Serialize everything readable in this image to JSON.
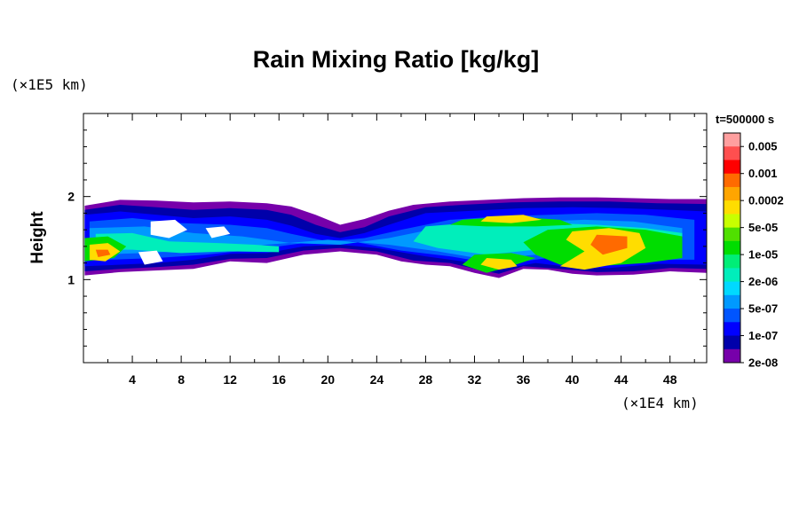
{
  "chart_data": {
    "type": "heatmap",
    "title": "Rain Mixing Ratio [kg/kg]",
    "ylabel": "Height",
    "x_unit": "(×1E4 km)",
    "y_unit": "(×1E5 km)",
    "time_label": "t=500000 s",
    "xlim": [
      0,
      51
    ],
    "ylim": [
      0,
      3
    ],
    "x_ticks": [
      4,
      8,
      12,
      16,
      20,
      24,
      28,
      32,
      36,
      40,
      44,
      48
    ],
    "y_ticks": [
      1,
      2
    ],
    "colorbar": {
      "labels": [
        "0.005",
        "0.001",
        "0.0002",
        "5e-05",
        "1e-05",
        "2e-06",
        "5e-07",
        "1e-07",
        "2e-08"
      ],
      "colors": [
        "#ff9f9f",
        "#ff4f4f",
        "#ff0000",
        "#ff6a00",
        "#ffa500",
        "#ffdd00",
        "#c8ff00",
        "#50e000",
        "#00dd00",
        "#00ee77",
        "#00eebb",
        "#00d9ff",
        "#0099ff",
        "#0055ff",
        "#0000ff",
        "#0000aa",
        "#7700aa"
      ]
    },
    "layers": [
      {
        "level": 0,
        "points": [
          [
            0.1,
            1.89
          ],
          [
            3,
            1.96
          ],
          [
            6,
            1.95
          ],
          [
            9,
            1.93
          ],
          [
            12,
            1.94
          ],
          [
            15,
            1.92
          ],
          [
            17,
            1.88
          ],
          [
            19,
            1.78
          ],
          [
            21,
            1.66
          ],
          [
            23,
            1.73
          ],
          [
            25,
            1.83
          ],
          [
            27,
            1.9
          ],
          [
            30,
            1.94
          ],
          [
            33,
            1.96
          ],
          [
            36,
            1.98
          ],
          [
            39,
            1.99
          ],
          [
            42,
            1.99
          ],
          [
            45,
            1.98
          ],
          [
            48,
            1.97
          ],
          [
            51,
            1.97
          ],
          [
            51,
            1.08
          ],
          [
            48,
            1.1
          ],
          [
            45,
            1.06
          ],
          [
            42,
            1.05
          ],
          [
            40,
            1.07
          ],
          [
            38,
            1.12
          ],
          [
            36,
            1.13
          ],
          [
            34,
            1.02
          ],
          [
            32,
            1.08
          ],
          [
            30,
            1.16
          ],
          [
            28,
            1.18
          ],
          [
            26,
            1.22
          ],
          [
            24,
            1.3
          ],
          [
            21,
            1.34
          ],
          [
            18,
            1.3
          ],
          [
            15,
            1.2
          ],
          [
            12,
            1.22
          ],
          [
            9,
            1.13
          ],
          [
            6,
            1.11
          ],
          [
            3,
            1.09
          ],
          [
            0.1,
            1.05
          ]
        ]
      },
      {
        "level": 1,
        "points": [
          [
            0.1,
            1.84
          ],
          [
            3,
            1.9
          ],
          [
            6,
            1.87
          ],
          [
            9,
            1.84
          ],
          [
            12,
            1.86
          ],
          [
            15,
            1.84
          ],
          [
            17,
            1.78
          ],
          [
            19,
            1.66
          ],
          [
            21,
            1.57
          ],
          [
            23,
            1.63
          ],
          [
            25,
            1.76
          ],
          [
            28,
            1.87
          ],
          [
            31,
            1.9
          ],
          [
            35,
            1.93
          ],
          [
            39,
            1.94
          ],
          [
            43,
            1.94
          ],
          [
            47,
            1.92
          ],
          [
            51,
            1.91
          ],
          [
            51,
            1.13
          ],
          [
            48,
            1.14
          ],
          [
            45,
            1.1
          ],
          [
            42,
            1.09
          ],
          [
            39,
            1.13
          ],
          [
            36,
            1.16
          ],
          [
            34,
            1.07
          ],
          [
            32,
            1.13
          ],
          [
            30,
            1.2
          ],
          [
            27,
            1.23
          ],
          [
            24,
            1.34
          ],
          [
            21,
            1.38
          ],
          [
            18,
            1.35
          ],
          [
            15,
            1.26
          ],
          [
            12,
            1.25
          ],
          [
            9,
            1.18
          ],
          [
            6,
            1.15
          ],
          [
            3,
            1.13
          ],
          [
            0.1,
            1.1
          ]
        ]
      },
      {
        "level": 2,
        "points": [
          [
            0.1,
            1.78
          ],
          [
            3,
            1.82
          ],
          [
            6,
            1.78
          ],
          [
            9,
            1.74
          ],
          [
            12,
            1.76
          ],
          [
            15,
            1.72
          ],
          [
            17,
            1.65
          ],
          [
            19,
            1.55
          ],
          [
            21,
            1.5
          ],
          [
            23,
            1.56
          ],
          [
            25,
            1.66
          ],
          [
            28,
            1.8
          ],
          [
            32,
            1.83
          ],
          [
            36,
            1.86
          ],
          [
            40,
            1.87
          ],
          [
            44,
            1.86
          ],
          [
            48,
            1.84
          ],
          [
            51,
            1.82
          ],
          [
            51,
            1.18
          ],
          [
            47,
            1.19
          ],
          [
            43,
            1.14
          ],
          [
            40,
            1.15
          ],
          [
            37,
            1.2
          ],
          [
            34,
            1.12
          ],
          [
            31,
            1.22
          ],
          [
            28,
            1.28
          ],
          [
            24,
            1.38
          ],
          [
            21,
            1.42
          ],
          [
            18,
            1.4
          ],
          [
            15,
            1.32
          ],
          [
            12,
            1.31
          ],
          [
            9,
            1.24
          ],
          [
            6,
            1.2
          ],
          [
            3,
            1.18
          ],
          [
            0.1,
            1.16
          ]
        ]
      },
      {
        "level": 3,
        "points": [
          [
            0.5,
            1.7
          ],
          [
            4,
            1.74
          ],
          [
            8,
            1.68
          ],
          [
            12,
            1.66
          ],
          [
            15,
            1.62
          ],
          [
            17,
            1.55
          ],
          [
            20,
            1.46
          ],
          [
            23,
            1.5
          ],
          [
            26,
            1.6
          ],
          [
            30,
            1.72
          ],
          [
            34,
            1.76
          ],
          [
            38,
            1.78
          ],
          [
            42,
            1.8
          ],
          [
            46,
            1.78
          ],
          [
            50,
            1.72
          ],
          [
            50,
            1.24
          ],
          [
            46,
            1.24
          ],
          [
            42,
            1.2
          ],
          [
            38,
            1.26
          ],
          [
            34,
            1.18
          ],
          [
            30,
            1.28
          ],
          [
            26,
            1.35
          ],
          [
            22,
            1.46
          ],
          [
            18,
            1.44
          ],
          [
            14,
            1.36
          ],
          [
            10,
            1.3
          ],
          [
            6,
            1.26
          ],
          [
            2,
            1.24
          ],
          [
            0.5,
            1.24
          ]
        ]
      },
      {
        "level": 4,
        "points": [
          [
            0.5,
            1.62
          ],
          [
            5,
            1.64
          ],
          [
            9,
            1.56
          ],
          [
            13,
            1.52
          ],
          [
            17,
            1.44
          ],
          [
            21,
            1.42
          ],
          [
            25,
            1.5
          ],
          [
            29,
            1.62
          ],
          [
            33,
            1.68
          ],
          [
            37,
            1.7
          ],
          [
            41,
            1.72
          ],
          [
            45,
            1.7
          ],
          [
            49,
            1.62
          ],
          [
            49,
            1.3
          ],
          [
            45,
            1.3
          ],
          [
            41,
            1.24
          ],
          [
            37,
            1.3
          ],
          [
            33,
            1.24
          ],
          [
            29,
            1.34
          ],
          [
            25,
            1.42
          ],
          [
            20,
            1.48
          ],
          [
            15,
            1.42
          ],
          [
            10,
            1.36
          ],
          [
            5,
            1.32
          ],
          [
            0.5,
            1.3
          ]
        ]
      },
      {
        "level": 6,
        "points": [
          [
            1,
            1.55
          ],
          [
            4,
            1.56
          ],
          [
            7,
            1.46
          ],
          [
            11,
            1.44
          ],
          [
            14,
            1.42
          ],
          [
            16,
            1.4
          ],
          [
            16,
            1.33
          ],
          [
            12,
            1.34
          ],
          [
            8,
            1.32
          ],
          [
            4,
            1.36
          ],
          [
            1,
            1.36
          ]
        ]
      },
      {
        "level": 6,
        "points": [
          [
            28,
            1.64
          ],
          [
            33,
            1.7
          ],
          [
            38,
            1.68
          ],
          [
            42,
            1.66
          ],
          [
            46,
            1.62
          ],
          [
            49,
            1.56
          ],
          [
            49,
            1.36
          ],
          [
            45,
            1.36
          ],
          [
            41,
            1.3
          ],
          [
            37,
            1.36
          ],
          [
            33,
            1.3
          ],
          [
            29,
            1.38
          ],
          [
            27,
            1.46
          ]
        ]
      },
      {
        "level": 8,
        "points": [
          [
            31,
            1.72
          ],
          [
            35,
            1.76
          ],
          [
            39,
            1.72
          ],
          [
            40,
            1.66
          ],
          [
            37,
            1.64
          ],
          [
            33,
            1.64
          ],
          [
            30,
            1.66
          ]
        ]
      },
      {
        "level": 8,
        "points": [
          [
            38,
            1.6
          ],
          [
            42,
            1.64
          ],
          [
            46,
            1.6
          ],
          [
            49,
            1.52
          ],
          [
            49,
            1.26
          ],
          [
            46,
            1.2
          ],
          [
            42,
            1.16
          ],
          [
            39,
            1.18
          ],
          [
            37,
            1.3
          ],
          [
            36,
            1.45
          ]
        ]
      },
      {
        "level": 8,
        "points": [
          [
            32,
            1.3
          ],
          [
            35,
            1.32
          ],
          [
            37,
            1.26
          ],
          [
            35,
            1.16
          ],
          [
            33,
            1.08
          ],
          [
            31,
            1.18
          ]
        ]
      },
      {
        "level": 8,
        "points": [
          [
            0.1,
            1.5
          ],
          [
            2,
            1.52
          ],
          [
            3.5,
            1.4
          ],
          [
            2.5,
            1.26
          ],
          [
            0.1,
            1.22
          ]
        ]
      },
      {
        "level": 11,
        "points": [
          [
            33,
            1.76
          ],
          [
            36,
            1.78
          ],
          [
            37.5,
            1.72
          ],
          [
            35,
            1.68
          ],
          [
            32.5,
            1.7
          ]
        ]
      },
      {
        "level": 11,
        "points": [
          [
            40,
            1.58
          ],
          [
            43,
            1.62
          ],
          [
            45.5,
            1.56
          ],
          [
            46,
            1.38
          ],
          [
            44,
            1.2
          ],
          [
            41,
            1.12
          ],
          [
            39,
            1.16
          ],
          [
            41,
            1.34
          ],
          [
            39.5,
            1.48
          ]
        ]
      },
      {
        "level": 11,
        "points": [
          [
            33,
            1.26
          ],
          [
            35,
            1.24
          ],
          [
            35.5,
            1.16
          ],
          [
            34,
            1.12
          ],
          [
            32.5,
            1.18
          ]
        ]
      },
      {
        "level": 11,
        "points": [
          [
            0.5,
            1.42
          ],
          [
            2,
            1.44
          ],
          [
            3,
            1.34
          ],
          [
            1.8,
            1.22
          ],
          [
            0.5,
            1.24
          ]
        ]
      },
      {
        "level": 13,
        "points": [
          [
            42,
            1.54
          ],
          [
            44.5,
            1.52
          ],
          [
            44.5,
            1.38
          ],
          [
            42.5,
            1.3
          ],
          [
            41.5,
            1.42
          ]
        ]
      },
      {
        "level": 13,
        "points": [
          [
            1,
            1.36
          ],
          [
            2,
            1.36
          ],
          [
            2.2,
            1.3
          ],
          [
            1.2,
            1.27
          ]
        ]
      }
    ],
    "voids": [
      {
        "points": [
          [
            5.5,
            1.7
          ],
          [
            7.5,
            1.72
          ],
          [
            8.5,
            1.6
          ],
          [
            7,
            1.5
          ],
          [
            5.5,
            1.54
          ]
        ]
      },
      {
        "points": [
          [
            10,
            1.62
          ],
          [
            11.5,
            1.64
          ],
          [
            12,
            1.55
          ],
          [
            10.5,
            1.5
          ]
        ]
      },
      {
        "points": [
          [
            4.5,
            1.33
          ],
          [
            6,
            1.35
          ],
          [
            6.5,
            1.22
          ],
          [
            5,
            1.18
          ]
        ]
      }
    ]
  }
}
